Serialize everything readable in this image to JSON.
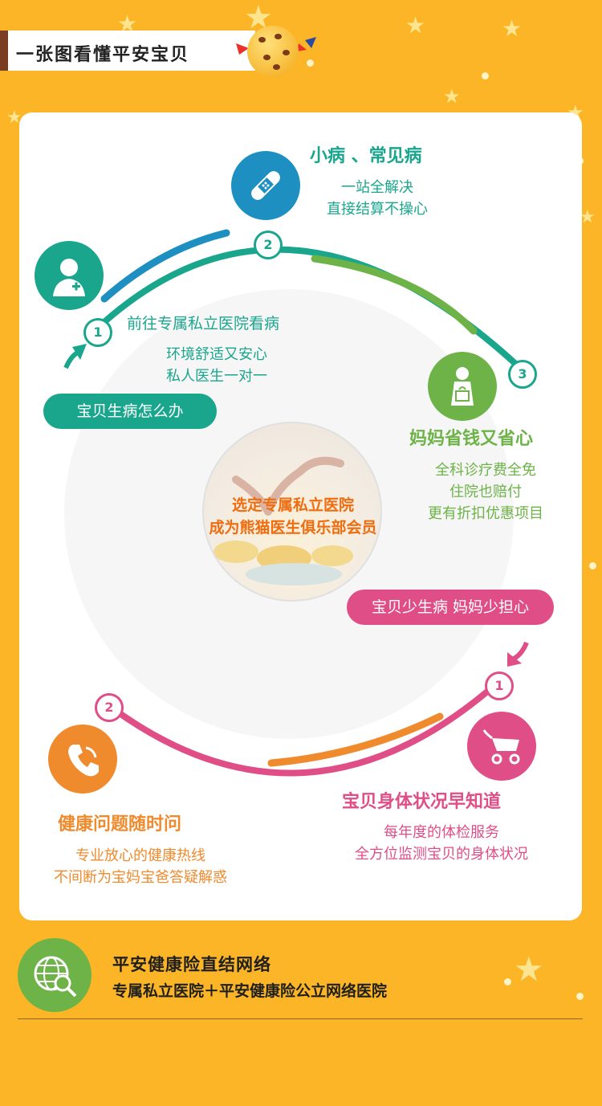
{
  "header": {
    "title": "一张图看懂平安宝贝"
  },
  "center": {
    "line1": "选定专属私立医院",
    "line2": "成为熊猫医生俱乐部会员"
  },
  "top_flow": {
    "pill": "宝贝生病怎么办",
    "step1": {
      "number": "1",
      "heading": "前往专属私立医院看病",
      "desc1": "环境舒适又安心",
      "desc2": "私人医生一对一"
    },
    "step2": {
      "number": "2",
      "heading": "小病 、常见病",
      "desc1": "一站全解决",
      "desc2": "直接结算不操心"
    },
    "step3": {
      "number": "3",
      "heading": "妈妈省钱又省心",
      "desc1": "全科诊疗费全免",
      "desc2": "住院也赔付",
      "desc3": "更有折扣优惠项目"
    }
  },
  "bottom_flow": {
    "pill": "宝贝少生病 妈妈少担心",
    "step1": {
      "number": "1",
      "heading": "宝贝身体状况早知道",
      "desc1": "每年度的体检服务",
      "desc2": "全方位监测宝贝的身体状况"
    },
    "step2": {
      "number": "2",
      "heading": "健康问题随时问",
      "desc1": "专业放心的健康热线",
      "desc2": "不间断为宝妈宝爸答疑解惑"
    }
  },
  "footer": {
    "title": "平安健康险直结网络",
    "subtitle": "专属私立医院＋平安健康险公立网络医院"
  },
  "colors": {
    "background": "#fbb526",
    "teal": "#1aa68d",
    "green": "#6db348",
    "blue": "#1d8fc0",
    "pink": "#df4e86",
    "orange": "#ef8a2d",
    "brown": "#7a3d22"
  },
  "icons": [
    "bandage-icon",
    "doctor-icon",
    "pregnant-mother-icon",
    "stroller-icon",
    "phone-icon",
    "globe-magnifier-icon",
    "cookie-icon"
  ]
}
